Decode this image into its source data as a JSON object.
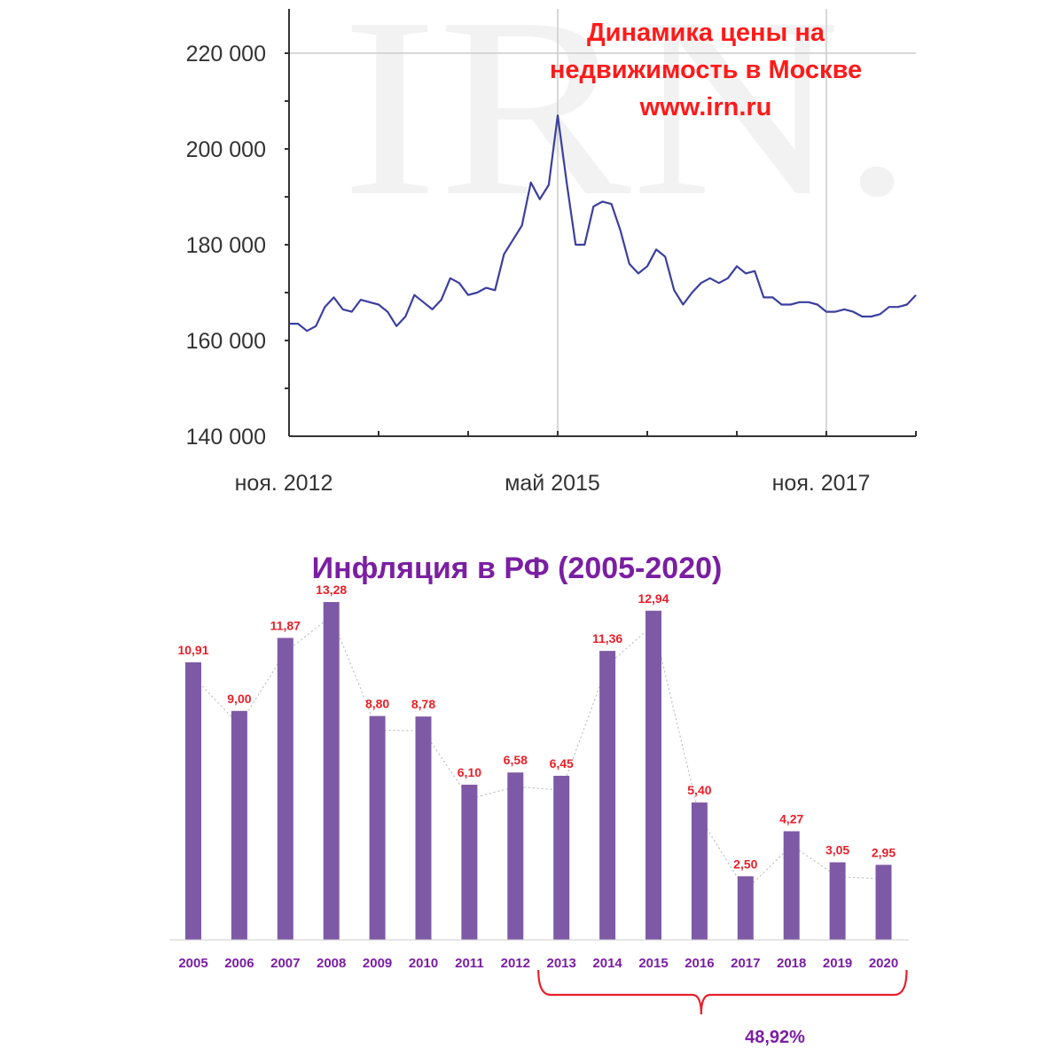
{
  "colors": {
    "price_line": "#3b3f9e",
    "title_red": "#ff1a1a",
    "bar": "#7e5aa6",
    "bar_label": "#e8202a",
    "inflation_title": "#7a1fa2",
    "axis": "#333333",
    "grid": "#cccccc",
    "trend_dots": "#bdbdbd",
    "brace": "#e8202a",
    "year_label": "#7a1fa2"
  },
  "chart_data": [
    {
      "type": "line",
      "title_lines": [
        "Динамика цены на",
        "недвижимость в Москве",
        "www.irn.ru"
      ],
      "watermark": "IRN.",
      "ylim": [
        140000,
        228000
      ],
      "yticks": [
        140000,
        160000,
        180000,
        200000,
        220000
      ],
      "ytick_labels": [
        "140 000",
        "160 000",
        "180 000",
        "200 000",
        "220 000"
      ],
      "xlim": [
        0,
        70
      ],
      "xticks_major": [
        {
          "x": 0,
          "label": "ноя. 2012"
        },
        {
          "x": 30,
          "label": "май 2015"
        },
        {
          "x": 60,
          "label": "ноя. 2017"
        }
      ],
      "xticks_minor": [
        10,
        20,
        40,
        50,
        70
      ],
      "grid_x": [
        30,
        60
      ],
      "grid_y": [
        220000
      ],
      "series": [
        {
          "x": [
            0,
            1,
            2,
            3,
            4,
            5,
            6,
            7,
            8,
            9,
            10,
            11,
            12,
            13,
            14,
            15,
            16,
            17,
            18,
            19,
            20,
            21,
            22,
            23,
            24,
            25,
            26,
            27,
            28,
            29,
            30,
            31,
            32,
            33,
            34,
            35,
            36,
            37,
            38,
            39,
            40,
            41,
            42,
            43,
            44,
            45,
            46,
            47,
            48,
            49,
            50,
            51,
            52,
            53,
            54,
            55,
            56,
            57,
            58,
            59,
            60,
            61,
            62,
            63,
            64,
            65,
            66,
            67,
            68,
            69,
            70
          ],
          "values": [
            163500,
            163500,
            162000,
            163000,
            167000,
            169000,
            166500,
            166000,
            168500,
            168000,
            167500,
            166000,
            163000,
            165000,
            169500,
            168000,
            166500,
            168500,
            173000,
            172000,
            169500,
            170000,
            171000,
            170500,
            178000,
            181000,
            184000,
            193000,
            189500,
            192500,
            207000,
            193000,
            180000,
            180000,
            188000,
            189000,
            188500,
            183000,
            176000,
            174000,
            175500,
            179000,
            177500,
            170500,
            167500,
            170000,
            172000,
            173000,
            172000,
            173000,
            175500,
            174000,
            174500,
            169000,
            169000,
            167500,
            167500,
            168000,
            168000,
            167500,
            166000,
            166000,
            166500,
            166000,
            165000,
            165000,
            165500,
            167000,
            167000,
            167500,
            169500
          ]
        }
      ]
    },
    {
      "type": "bar",
      "title": "Инфляция в РФ (2005-2020)",
      "categories": [
        "2005",
        "2006",
        "2007",
        "2008",
        "2009",
        "2010",
        "2011",
        "2012",
        "2013",
        "2014",
        "2015",
        "2016",
        "2017",
        "2018",
        "2019",
        "2020"
      ],
      "values": [
        10.91,
        9.0,
        11.87,
        13.28,
        8.8,
        8.78,
        6.1,
        6.58,
        6.45,
        11.36,
        12.94,
        5.4,
        2.5,
        4.27,
        3.05,
        2.95
      ],
      "value_labels": [
        "10,91",
        "9,00",
        "11,87",
        "13,28",
        "8,80",
        "8,78",
        "6,10",
        "6,58",
        "6,45",
        "11,36",
        "12,94",
        "5,40",
        "2,50",
        "4,27",
        "3,05",
        "2,95"
      ],
      "ylim": [
        0,
        13.28
      ],
      "trend_line": true,
      "brace": {
        "from": "2013",
        "to": "2020",
        "label": "48,92%"
      }
    }
  ]
}
